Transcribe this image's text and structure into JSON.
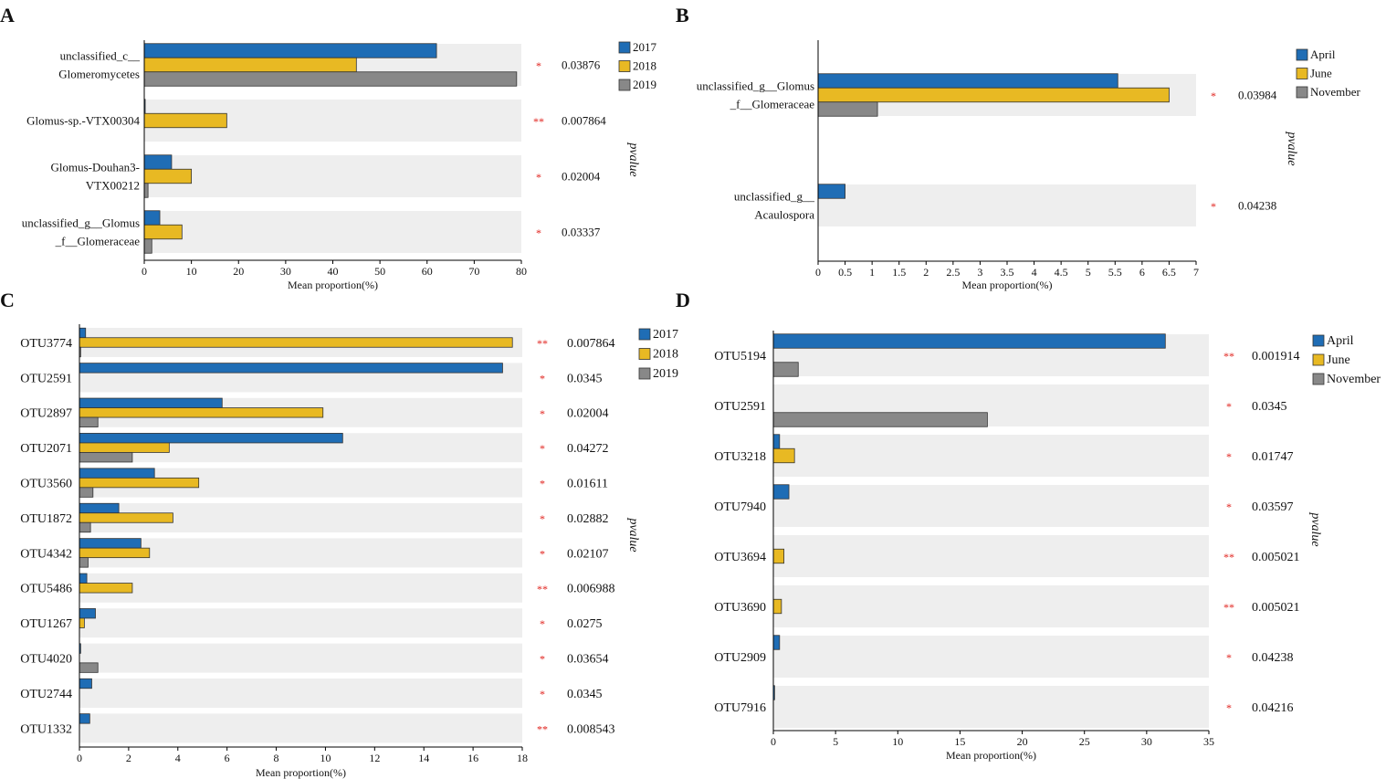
{
  "colors": {
    "series_a": "#1f6db5",
    "series_b": "#e8b923",
    "series_c": "#888888",
    "band": "#eeeeee",
    "star": "#e0201b",
    "text": "#111111"
  },
  "chart_data": [
    {
      "panel": "A",
      "type": "bar",
      "orientation": "horizontal",
      "xlabel": "Mean proportion(%)",
      "pvalue_label": "pvalue",
      "xlim": [
        0,
        80
      ],
      "ticks": [
        0,
        10,
        20,
        30,
        40,
        50,
        60,
        70,
        80
      ],
      "tick_labels": [
        "0",
        "10",
        "20",
        "30",
        "40",
        "50",
        "60",
        "70",
        "80"
      ],
      "legend": [
        "2017",
        "2018",
        "2019"
      ],
      "categories": [
        {
          "label": [
            "unclassified_c__",
            "Glomeromycetes"
          ],
          "values": [
            62,
            45,
            79
          ],
          "stars": "*",
          "pvalue": "0.03876"
        },
        {
          "label": [
            "Glomus-sp.-VTX00304"
          ],
          "values": [
            0.2,
            17.5,
            0
          ],
          "stars": "**",
          "pvalue": "0.007864"
        },
        {
          "label": [
            "Glomus-Douhan3-",
            "VTX00212"
          ],
          "values": [
            5.8,
            10,
            0.8
          ],
          "stars": "*",
          "pvalue": "0.02004"
        },
        {
          "label": [
            "unclassified_g__Glomus",
            "_f__Glomeraceae"
          ],
          "values": [
            3.3,
            8,
            1.6
          ],
          "stars": "*",
          "pvalue": "0.03337"
        }
      ]
    },
    {
      "panel": "B",
      "type": "bar",
      "orientation": "horizontal",
      "xlabel": "Mean proportion(%)",
      "pvalue_label": "pvalue",
      "xlim": [
        0,
        7
      ],
      "ticks": [
        0,
        0.5,
        1,
        1.5,
        2,
        2.5,
        3,
        3.5,
        4,
        4.5,
        5,
        5.5,
        6,
        6.5,
        7
      ],
      "tick_labels": [
        "0",
        "0.5",
        "1",
        "1.5",
        "2",
        "2.5",
        "3",
        "3.5",
        "4",
        "4.5",
        "5",
        "5.5",
        "6",
        "6.5",
        "7"
      ],
      "legend": [
        "April",
        "June",
        "November"
      ],
      "categories": [
        {
          "label": [
            "unclassified_g__Glomus",
            "_f__Glomeraceae"
          ],
          "values": [
            5.55,
            6.5,
            1.1
          ],
          "stars": "*",
          "pvalue": "0.03984"
        },
        {
          "label": [
            "unclassified_g__",
            "Acaulospora"
          ],
          "values": [
            0.5,
            0,
            0
          ],
          "stars": "*",
          "pvalue": "0.04238"
        }
      ]
    },
    {
      "panel": "C",
      "type": "bar",
      "orientation": "horizontal",
      "xlabel": "Mean proportion(%)",
      "pvalue_label": "pvalue",
      "xlim": [
        0,
        18
      ],
      "ticks": [
        0,
        2,
        4,
        6,
        8,
        10,
        12,
        14,
        16,
        18
      ],
      "tick_labels": [
        "0",
        "2",
        "4",
        "6",
        "8",
        "10",
        "12",
        "14",
        "16",
        "18"
      ],
      "legend": [
        "2017",
        "2018",
        "2019"
      ],
      "categories": [
        {
          "label": [
            "OTU3774"
          ],
          "values": [
            0.25,
            17.6,
            0.05
          ],
          "stars": "**",
          "pvalue": "0.007864"
        },
        {
          "label": [
            "OTU2591"
          ],
          "values": [
            17.2,
            0,
            0
          ],
          "stars": "*",
          "pvalue": "0.0345"
        },
        {
          "label": [
            "OTU2897"
          ],
          "values": [
            5.8,
            9.9,
            0.75
          ],
          "stars": "*",
          "pvalue": "0.02004"
        },
        {
          "label": [
            "OTU2071"
          ],
          "values": [
            10.7,
            3.65,
            2.15
          ],
          "stars": "*",
          "pvalue": "0.04272"
        },
        {
          "label": [
            "OTU3560"
          ],
          "values": [
            3.05,
            4.85,
            0.55
          ],
          "stars": "*",
          "pvalue": "0.01611"
        },
        {
          "label": [
            "OTU1872"
          ],
          "values": [
            1.6,
            3.8,
            0.45
          ],
          "stars": "*",
          "pvalue": "0.02882"
        },
        {
          "label": [
            "OTU4342"
          ],
          "values": [
            2.5,
            2.85,
            0.35
          ],
          "stars": "*",
          "pvalue": "0.02107"
        },
        {
          "label": [
            "OTU5486"
          ],
          "values": [
            0.3,
            2.15,
            0
          ],
          "stars": "**",
          "pvalue": "0.006988"
        },
        {
          "label": [
            "OTU1267"
          ],
          "values": [
            0.65,
            0.2,
            0
          ],
          "stars": "*",
          "pvalue": "0.0275"
        },
        {
          "label": [
            "OTU4020"
          ],
          "values": [
            0.05,
            0,
            0.75
          ],
          "stars": "*",
          "pvalue": "0.03654"
        },
        {
          "label": [
            "OTU2744"
          ],
          "values": [
            0.5,
            0,
            0
          ],
          "stars": "*",
          "pvalue": "0.0345"
        },
        {
          "label": [
            "OTU1332"
          ],
          "values": [
            0.42,
            0,
            0
          ],
          "stars": "**",
          "pvalue": "0.008543"
        }
      ]
    },
    {
      "panel": "D",
      "type": "bar",
      "orientation": "horizontal",
      "xlabel": "Mean proportion(%)",
      "pvalue_label": "pvalue",
      "xlim": [
        0,
        35
      ],
      "ticks": [
        0,
        5,
        10,
        15,
        20,
        25,
        30,
        35
      ],
      "tick_labels": [
        "0",
        "5",
        "10",
        "15",
        "20",
        "25",
        "30",
        "35"
      ],
      "legend": [
        "April",
        "June",
        "November"
      ],
      "categories": [
        {
          "label": [
            "OTU5194"
          ],
          "values": [
            31.5,
            0,
            2
          ],
          "stars": "**",
          "pvalue": "0.001914"
        },
        {
          "label": [
            "OTU2591"
          ],
          "values": [
            0,
            0,
            17.2
          ],
          "stars": "*",
          "pvalue": "0.0345"
        },
        {
          "label": [
            "OTU3218"
          ],
          "values": [
            0.5,
            1.7,
            0
          ],
          "stars": "*",
          "pvalue": "0.01747"
        },
        {
          "label": [
            "OTU7940"
          ],
          "values": [
            1.25,
            0,
            0
          ],
          "stars": "*",
          "pvalue": "0.03597"
        },
        {
          "label": [
            "OTU3694"
          ],
          "values": [
            0,
            0.85,
            0
          ],
          "stars": "**",
          "pvalue": "0.005021"
        },
        {
          "label": [
            "OTU3690"
          ],
          "values": [
            0,
            0.65,
            0
          ],
          "stars": "**",
          "pvalue": "0.005021"
        },
        {
          "label": [
            "OTU2909"
          ],
          "values": [
            0.5,
            0,
            0
          ],
          "stars": "*",
          "pvalue": "0.04238"
        },
        {
          "label": [
            "OTU7916"
          ],
          "values": [
            0.1,
            0,
            0
          ],
          "stars": "*",
          "pvalue": "0.04216"
        }
      ]
    }
  ]
}
